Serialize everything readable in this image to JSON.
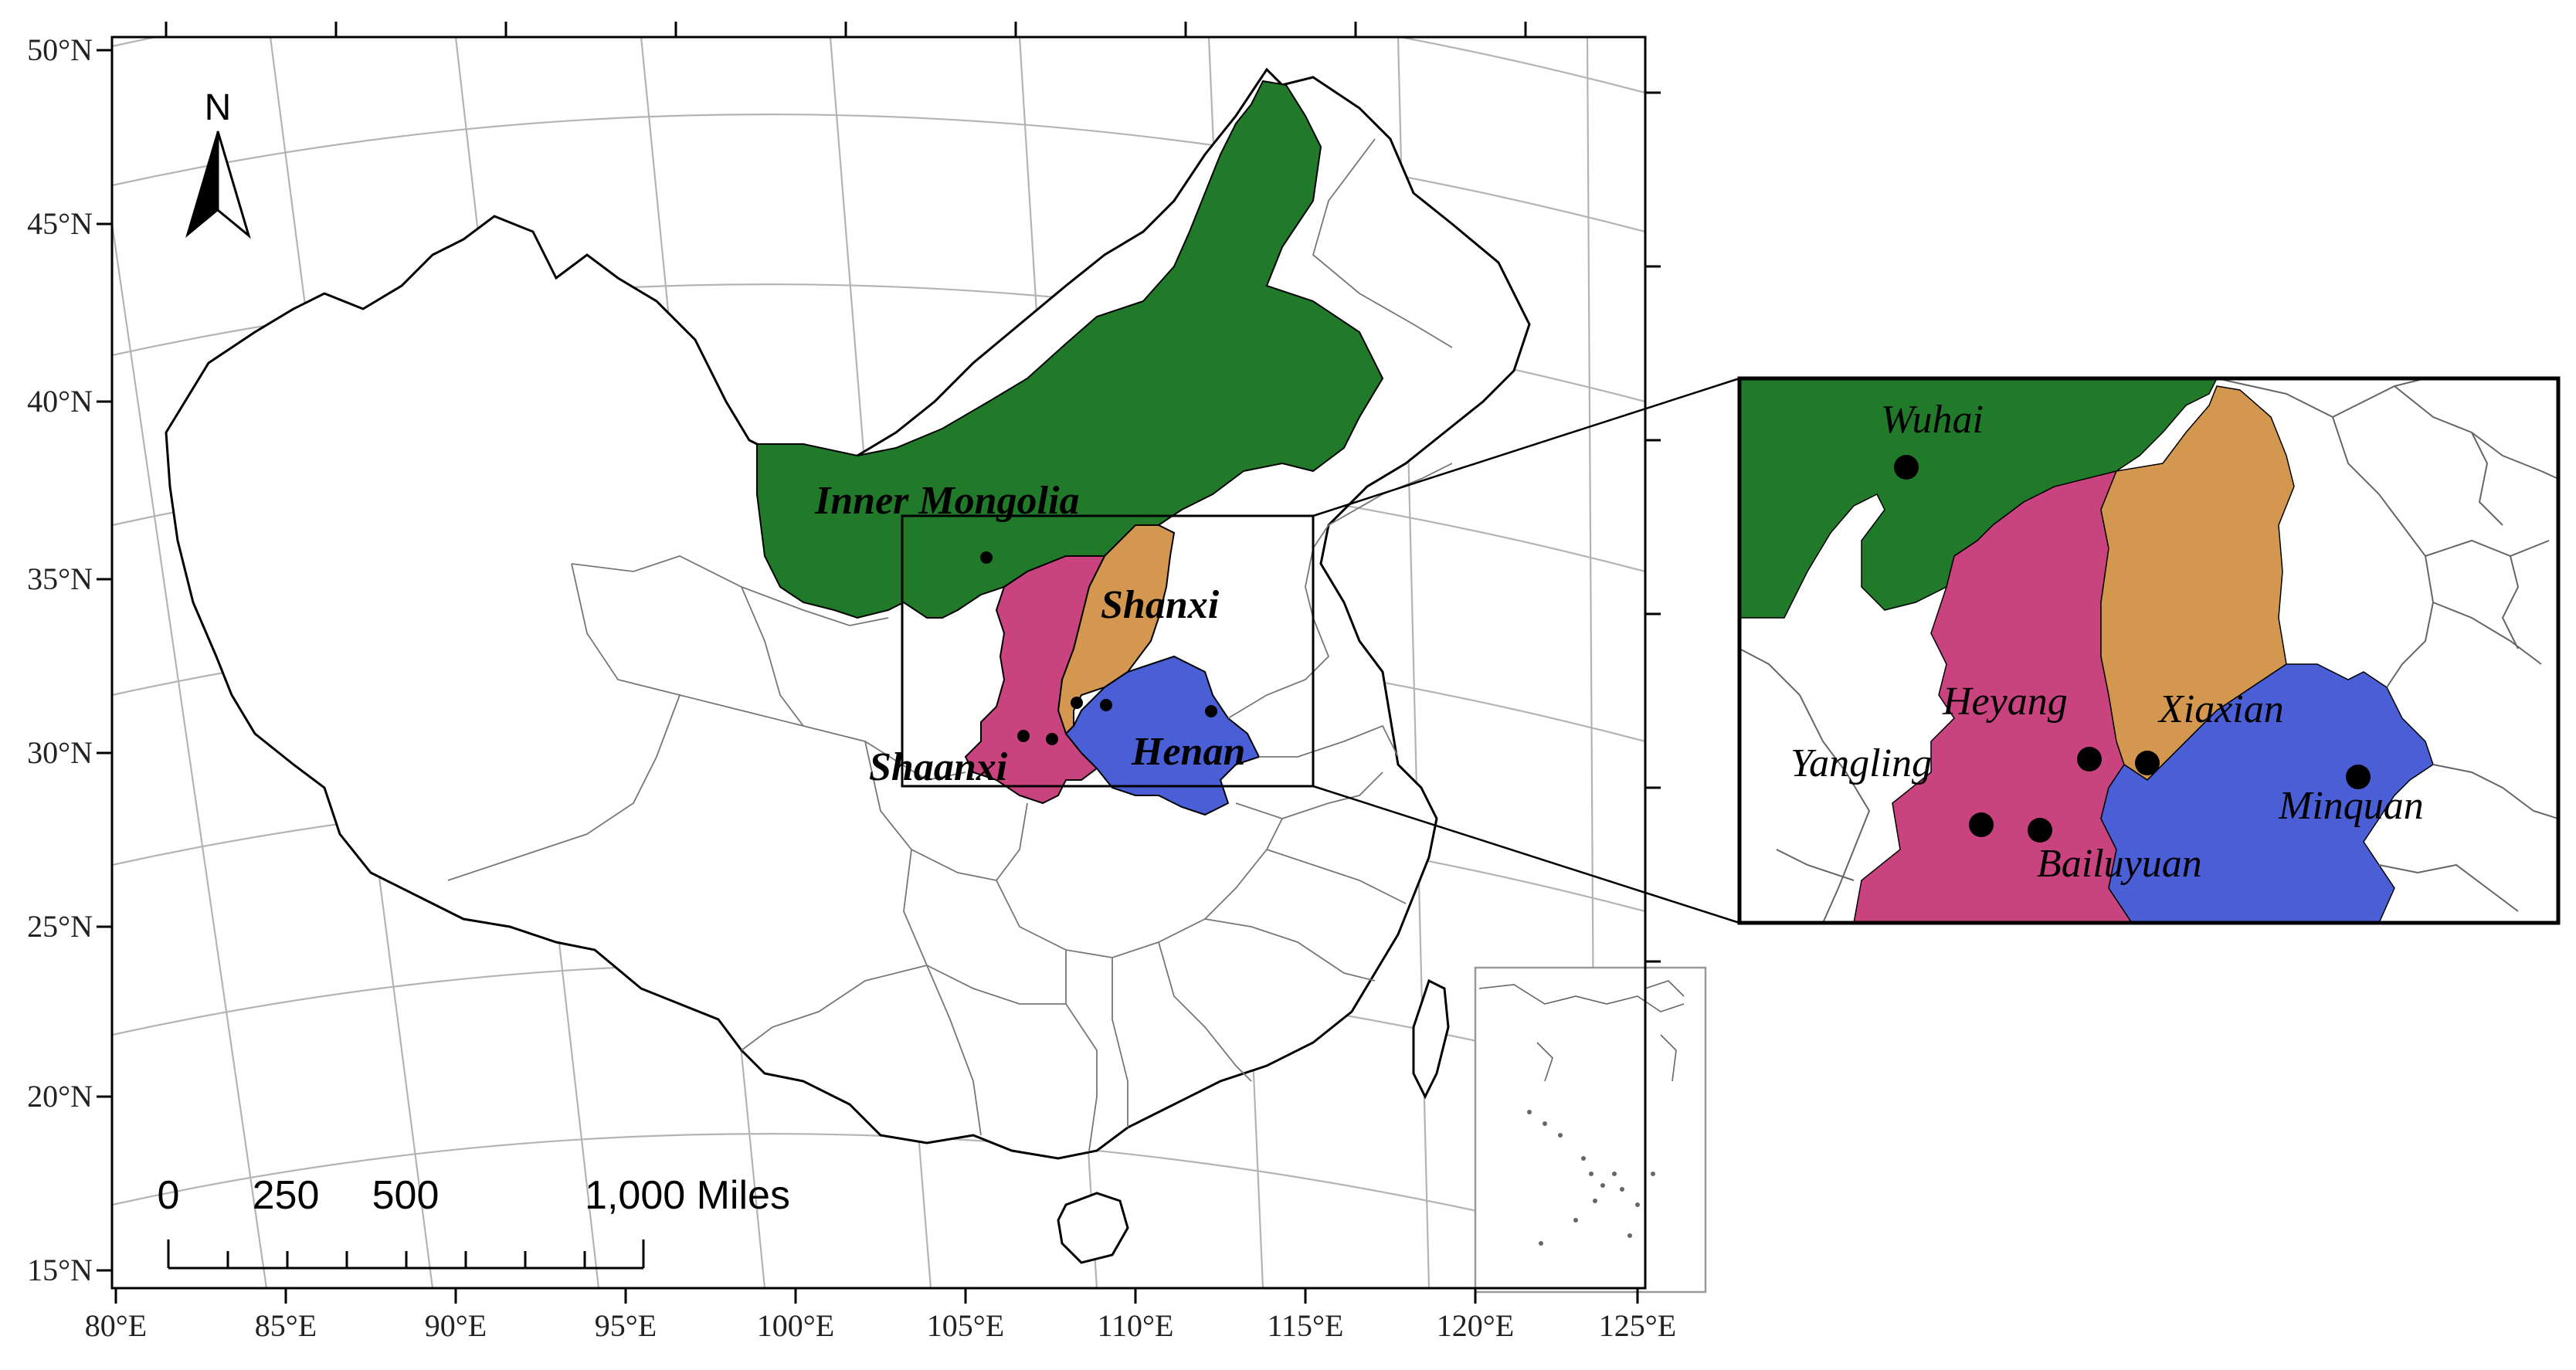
{
  "colors": {
    "inner_mongolia": "#207a2a",
    "shanxi": "#d4974f",
    "shaanxi": "#c9447f",
    "henan": "#4a5fd6",
    "border": "#000000",
    "graticule": "#b4b4b4",
    "province_line": "#777777"
  },
  "north_arrow": {
    "label": "N",
    "icon": "north-arrow-icon"
  },
  "scale_bar": {
    "labels": [
      "0",
      "250",
      "500",
      "1,000 Miles"
    ]
  },
  "axes": {
    "lat_labels": [
      "50°N",
      "45°N",
      "40°N",
      "35°N",
      "30°N",
      "25°N",
      "20°N",
      "15°N"
    ],
    "lon_labels": [
      "80°E",
      "85°E",
      "90°E",
      "95°E",
      "100°E",
      "105°E",
      "110°E",
      "115°E",
      "120°E",
      "125°E"
    ]
  },
  "provinces": {
    "inner_mongolia": "Inner  Mongolia",
    "shanxi": "Shanxi",
    "shaanxi": "Shaanxi",
    "henan": "Henan"
  },
  "sites": {
    "wuhai": "Wuhai",
    "heyang": "Heyang",
    "xiaxian": "Xiaxian",
    "yangling": "Yangling",
    "minquan": "Minquan",
    "bailuyuan": "Bailuyuan"
  }
}
